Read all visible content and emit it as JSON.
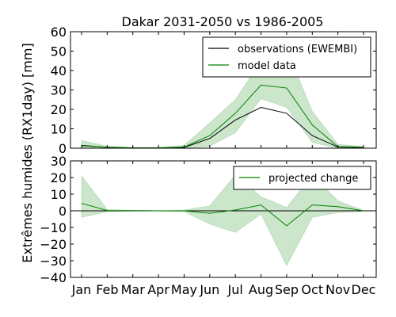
{
  "chart_data": {
    "type": "line",
    "title": "Dakar 2031-2050 vs 1986-2005",
    "ylabel": "Extrêmes humides (RX1day) [mm]",
    "categories": [
      "Jan",
      "Feb",
      "Mar",
      "Apr",
      "May",
      "Jun",
      "Jul",
      "Aug",
      "Sep",
      "Oct",
      "Nov",
      "Dec"
    ],
    "panels": [
      {
        "ylim": [
          0,
          60
        ],
        "yticks": [
          0,
          10,
          20,
          30,
          40,
          50,
          60
        ],
        "legend_position": "top-right",
        "series": [
          {
            "name": "observations (EWEMBI)",
            "color": "#000000",
            "values": [
              1.5,
              0.4,
              0.1,
              0.1,
              0.4,
              5.0,
              14.5,
              21.0,
              18.0,
              6.5,
              0.6,
              0.3
            ]
          },
          {
            "name": "model data",
            "color": "#008000",
            "values": [
              1.2,
              0.5,
              0.2,
              0.2,
              0.6,
              6.5,
              18.0,
              32.5,
              31.0,
              12.0,
              0.8,
              0.5
            ],
            "band_low": [
              0.0,
              0.0,
              0.0,
              0.0,
              0.1,
              1.0,
              8.0,
              25.5,
              21.0,
              3.0,
              0.0,
              0.0
            ],
            "band_high": [
              4.0,
              1.0,
              0.4,
              0.4,
              1.5,
              13.0,
              25.0,
              45.0,
              51.0,
              19.0,
              2.0,
              1.0
            ]
          }
        ]
      },
      {
        "ylim": [
          -40,
          30
        ],
        "yticks": [
          -40,
          -30,
          -20,
          -10,
          0,
          10,
          20,
          30
        ],
        "legend_position": "top-right",
        "zero_line": true,
        "series": [
          {
            "name": "projected change",
            "color": "#008000",
            "values": [
              4.5,
              0.2,
              0.1,
              0.0,
              0.0,
              -1.5,
              0.5,
              3.5,
              -9.0,
              3.5,
              2.5,
              0.0
            ],
            "band_low": [
              -4.0,
              -0.5,
              -0.2,
              -0.2,
              -0.5,
              -8.0,
              -13.0,
              -2.0,
              -33.0,
              -4.0,
              -1.0,
              -0.3
            ],
            "band_high": [
              21.0,
              0.8,
              0.3,
              0.2,
              0.5,
              3.0,
              21.5,
              8.5,
              2.0,
              21.5,
              6.0,
              0.3
            ]
          }
        ]
      }
    ]
  }
}
